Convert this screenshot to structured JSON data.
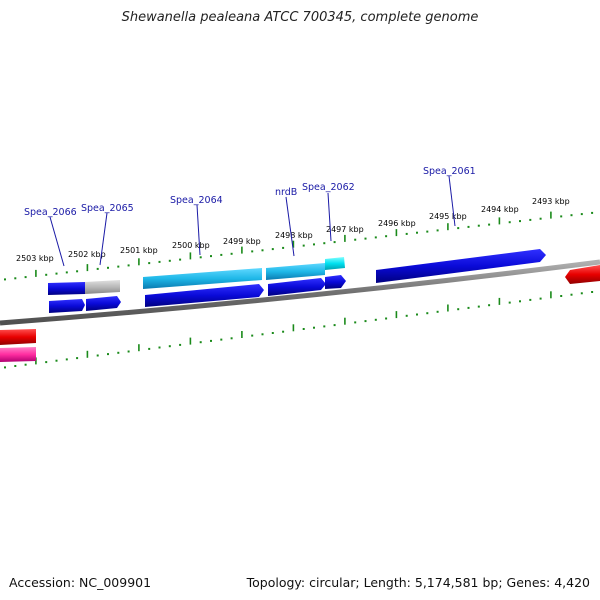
{
  "title": "Shewanella pealeana ATCC 700345, complete genome",
  "footer": {
    "accession": "Accession: NC_009901",
    "topology": "Topology: circular; Length: 5,174,581 bp; Genes: 4,420"
  },
  "colors": {
    "forward_gene": "#0a0ad8",
    "reverse_gene": "#0a0ad8",
    "highlight_gene": "#1fb8e8",
    "cyan_gene": "#00e0f0",
    "grey_gene": "#b8b8b8",
    "red_gene": "#e80000",
    "pink_gene": "#ff2da0",
    "backbone": "#808080",
    "tick": "#1a8a1a",
    "gene_label": "#1a1aa6"
  },
  "scale_labels": [
    "2503 kbp",
    "2502 kbp",
    "2501 kbp",
    "2500 kbp",
    "2499 kbp",
    "2498 kbp",
    "2497 kbp",
    "2496 kbp",
    "2495 kbp",
    "2494 kbp",
    "2493 kbp"
  ],
  "gene_labels": [
    "Spea_2066",
    "Spea_2065",
    "Spea_2064",
    "nrdB",
    "Spea_2062",
    "Spea_2061"
  ]
}
